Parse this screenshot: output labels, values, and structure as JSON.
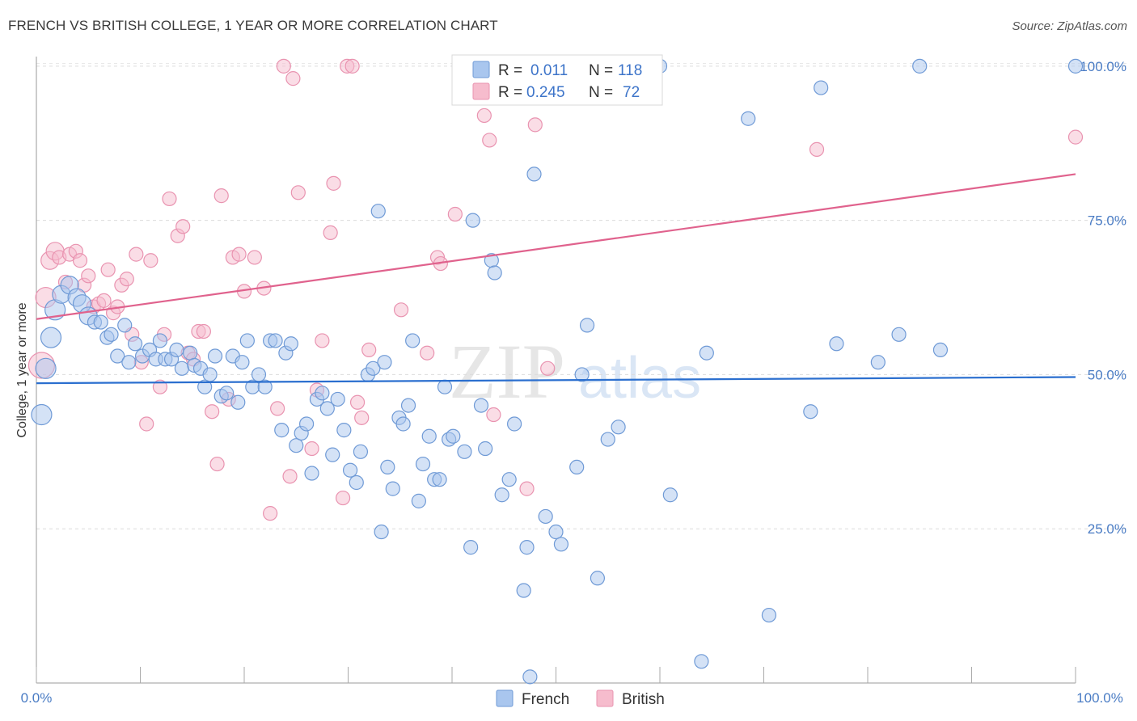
{
  "header": {
    "title": "FRENCH VS BRITISH COLLEGE, 1 YEAR OR MORE CORRELATION CHART",
    "source": "Source: ZipAtlas.com"
  },
  "colors": {
    "french_fill": "#a9c6ee",
    "french_stroke": "#6f9ad6",
    "french_line": "#2b6fcf",
    "british_fill": "#f6bccd",
    "british_stroke": "#e993b0",
    "british_line": "#e0628d",
    "tick_color": "#4a7cc4"
  },
  "legend": {
    "french": {
      "r_label": "R = ",
      "r_value": "0.011",
      "n_label": "N = ",
      "n_value": "118"
    },
    "british": {
      "r_label": "R = ",
      "r_value": "0.245",
      "n_label": "N = ",
      "n_value": "72"
    }
  },
  "watermark": {
    "zip": "ZIP",
    "atlas": "atlas"
  },
  "chart_data": {
    "type": "scatter",
    "title": "FRENCH VS BRITISH COLLEGE, 1 YEAR OR MORE CORRELATION CHART",
    "xlabel": "",
    "ylabel": "College, 1 year or more",
    "xlim": [
      0,
      100
    ],
    "ylim": [
      0,
      102
    ],
    "x_tick_labels": [
      "0.0%",
      "100.0%"
    ],
    "y_ticks": [
      25,
      50,
      75,
      100
    ],
    "y_tick_labels": [
      "25.0%",
      "50.0%",
      "75.0%",
      "100.0%"
    ],
    "grid": "horizontal dashed",
    "legend_position": "top-center",
    "series": [
      {
        "name": "French",
        "trend": {
          "x": [
            0,
            100
          ],
          "y": [
            48.6,
            49.6
          ]
        },
        "points": [
          [
            0.5,
            43.5,
            3
          ],
          [
            0.9,
            51,
            3
          ],
          [
            1.4,
            56,
            3
          ],
          [
            1.8,
            60.5,
            3
          ],
          [
            2.4,
            63,
            2
          ],
          [
            3.2,
            64.5,
            2
          ],
          [
            3.9,
            62.5,
            2
          ],
          [
            4.4,
            61.5,
            2
          ],
          [
            5.0,
            59.5,
            2
          ],
          [
            5.6,
            58.5,
            1
          ],
          [
            6.2,
            58.5,
            1
          ],
          [
            6.8,
            56,
            1
          ],
          [
            7.2,
            56.5,
            1
          ],
          [
            7.8,
            53,
            1
          ],
          [
            8.5,
            58,
            1
          ],
          [
            8.9,
            52,
            1
          ],
          [
            9.5,
            55,
            1
          ],
          [
            10.2,
            53,
            1
          ],
          [
            10.9,
            54,
            1
          ],
          [
            11.5,
            52.5,
            1
          ],
          [
            11.9,
            55.5,
            1
          ],
          [
            12.4,
            52.5,
            1
          ],
          [
            13.0,
            52.5,
            1
          ],
          [
            13.5,
            54,
            1
          ],
          [
            14.0,
            51,
            1
          ],
          [
            14.8,
            53.5,
            1
          ],
          [
            15.2,
            51.5,
            1
          ],
          [
            15.8,
            51,
            1
          ],
          [
            16.2,
            48,
            1
          ],
          [
            16.7,
            50,
            1
          ],
          [
            17.2,
            53,
            1
          ],
          [
            17.8,
            46.5,
            1
          ],
          [
            18.3,
            47,
            1
          ],
          [
            18.9,
            53,
            1
          ],
          [
            19.4,
            45.5,
            1
          ],
          [
            19.8,
            52,
            1
          ],
          [
            20.3,
            55.5,
            1
          ],
          [
            20.8,
            48,
            1
          ],
          [
            21.4,
            50,
            1
          ],
          [
            22.0,
            48,
            1
          ],
          [
            22.5,
            55.5,
            1
          ],
          [
            23.0,
            55.5,
            1
          ],
          [
            23.6,
            41,
            1
          ],
          [
            24.0,
            53.5,
            1
          ],
          [
            24.5,
            55,
            1
          ],
          [
            25.0,
            38.5,
            1
          ],
          [
            25.5,
            40.5,
            1
          ],
          [
            26.0,
            42,
            1
          ],
          [
            26.5,
            34,
            1
          ],
          [
            27.0,
            46,
            1
          ],
          [
            27.5,
            47,
            1
          ],
          [
            28.0,
            44.5,
            1
          ],
          [
            28.5,
            37,
            1
          ],
          [
            29.0,
            46,
            1
          ],
          [
            29.6,
            41,
            1
          ],
          [
            30.2,
            34.5,
            1
          ],
          [
            30.8,
            32.5,
            1
          ],
          [
            31.2,
            37.5,
            1
          ],
          [
            31.9,
            50,
            1
          ],
          [
            32.4,
            51,
            1
          ],
          [
            32.9,
            76.5,
            1
          ],
          [
            33.2,
            24.5,
            1
          ],
          [
            33.5,
            52,
            1
          ],
          [
            33.8,
            35,
            1
          ],
          [
            34.3,
            31.5,
            1
          ],
          [
            34.9,
            43,
            1
          ],
          [
            35.3,
            42,
            1
          ],
          [
            35.8,
            45,
            1
          ],
          [
            36.2,
            55.5,
            1
          ],
          [
            36.8,
            29.5,
            1
          ],
          [
            37.2,
            35.5,
            1
          ],
          [
            37.8,
            40,
            1
          ],
          [
            38.3,
            33,
            1
          ],
          [
            38.8,
            33,
            1
          ],
          [
            39.3,
            48,
            1
          ],
          [
            39.7,
            39.5,
            1
          ],
          [
            40.1,
            40,
            1
          ],
          [
            41.2,
            37.5,
            1
          ],
          [
            41.8,
            22,
            1
          ],
          [
            42.0,
            75,
            1
          ],
          [
            42.8,
            45,
            1
          ],
          [
            43.2,
            38,
            1
          ],
          [
            43.8,
            68.5,
            1
          ],
          [
            44.1,
            66.5,
            1
          ],
          [
            44.8,
            30.5,
            1
          ],
          [
            45.5,
            33,
            1
          ],
          [
            46.0,
            42,
            1
          ],
          [
            46.9,
            15,
            1
          ],
          [
            47.2,
            22,
            1
          ],
          [
            47.5,
            1,
            1
          ],
          [
            47.9,
            82.5,
            1
          ],
          [
            49.0,
            27,
            1
          ],
          [
            50.0,
            24.5,
            1
          ],
          [
            50.5,
            22.5,
            1
          ],
          [
            52.0,
            35,
            1
          ],
          [
            52.5,
            50,
            1
          ],
          [
            53.0,
            58,
            1
          ],
          [
            54.0,
            17,
            1
          ],
          [
            55.0,
            39.5,
            1
          ],
          [
            56.0,
            41.5,
            1
          ],
          [
            60.0,
            100,
            1
          ],
          [
            61.0,
            30.5,
            1
          ],
          [
            64.0,
            3.5,
            1
          ],
          [
            64.5,
            53.5,
            1
          ],
          [
            68.5,
            91.5,
            1
          ],
          [
            70.5,
            11,
            1
          ],
          [
            74.5,
            44,
            1
          ],
          [
            75.5,
            96.5,
            1
          ],
          [
            77.0,
            55,
            1
          ],
          [
            81.0,
            52,
            1
          ],
          [
            83.0,
            56.5,
            1
          ],
          [
            85.0,
            100,
            1
          ],
          [
            87.0,
            54,
            1
          ],
          [
            100.0,
            100,
            1
          ]
        ]
      },
      {
        "name": "British",
        "trend": {
          "x": [
            0,
            100
          ],
          "y": [
            59.0,
            82.5
          ]
        },
        "points": [
          [
            0.5,
            51.5,
            4
          ],
          [
            0.9,
            62.5,
            3
          ],
          [
            1.3,
            68.5,
            2
          ],
          [
            1.8,
            70,
            2
          ],
          [
            2.2,
            69,
            1
          ],
          [
            2.8,
            65,
            1
          ],
          [
            3.2,
            69.5,
            1
          ],
          [
            3.8,
            70,
            1
          ],
          [
            4.2,
            68.5,
            1
          ],
          [
            4.6,
            64.5,
            1
          ],
          [
            5.0,
            66,
            1
          ],
          [
            5.5,
            61,
            1
          ],
          [
            6.0,
            61.5,
            1
          ],
          [
            6.5,
            62,
            1
          ],
          [
            6.9,
            67,
            1
          ],
          [
            7.4,
            60,
            1
          ],
          [
            7.8,
            61,
            1
          ],
          [
            8.2,
            64.5,
            1
          ],
          [
            8.7,
            65.5,
            1
          ],
          [
            9.2,
            56.5,
            1
          ],
          [
            9.6,
            69.5,
            1
          ],
          [
            10.1,
            52,
            1
          ],
          [
            10.6,
            42,
            1
          ],
          [
            11.0,
            68.5,
            1
          ],
          [
            11.9,
            48,
            1
          ],
          [
            12.3,
            56.5,
            1
          ],
          [
            12.8,
            78.5,
            1
          ],
          [
            13.6,
            72.5,
            1
          ],
          [
            14.1,
            74,
            1
          ],
          [
            14.6,
            53.5,
            1
          ],
          [
            15.1,
            52.5,
            1
          ],
          [
            15.6,
            57,
            1
          ],
          [
            16.1,
            57,
            1
          ],
          [
            16.9,
            44,
            1
          ],
          [
            17.4,
            35.5,
            1
          ],
          [
            17.8,
            79,
            1
          ],
          [
            18.5,
            46,
            1
          ],
          [
            18.9,
            69,
            1
          ],
          [
            19.5,
            69.5,
            1
          ],
          [
            20.0,
            63.5,
            1
          ],
          [
            21.0,
            69,
            1
          ],
          [
            21.9,
            64,
            1
          ],
          [
            22.5,
            27.5,
            1
          ],
          [
            23.2,
            44.5,
            1
          ],
          [
            23.8,
            100,
            1
          ],
          [
            24.4,
            33.5,
            1
          ],
          [
            24.7,
            98,
            1
          ],
          [
            25.2,
            79.5,
            1
          ],
          [
            26.5,
            38,
            1
          ],
          [
            27.0,
            47.5,
            1
          ],
          [
            27.5,
            55.5,
            1
          ],
          [
            28.3,
            73,
            1
          ],
          [
            28.6,
            81,
            1
          ],
          [
            29.5,
            30,
            1
          ],
          [
            29.9,
            100,
            1
          ],
          [
            30.4,
            100,
            1
          ],
          [
            30.9,
            45.5,
            1
          ],
          [
            31.3,
            43,
            1
          ],
          [
            32.0,
            54,
            1
          ],
          [
            35.1,
            60.5,
            1
          ],
          [
            37.6,
            53.5,
            1
          ],
          [
            38.6,
            69,
            1
          ],
          [
            38.9,
            68,
            1
          ],
          [
            40.3,
            76,
            1
          ],
          [
            43.1,
            92,
            1
          ],
          [
            43.6,
            88,
            1
          ],
          [
            44.0,
            43.5,
            1
          ],
          [
            47.2,
            31.5,
            1
          ],
          [
            48.0,
            90.5,
            1
          ],
          [
            49.2,
            51,
            1
          ],
          [
            75.1,
            86.5,
            1
          ],
          [
            100.0,
            88.5,
            1
          ]
        ]
      }
    ]
  },
  "bottom_legend": {
    "french_label": "French",
    "british_label": "British"
  }
}
